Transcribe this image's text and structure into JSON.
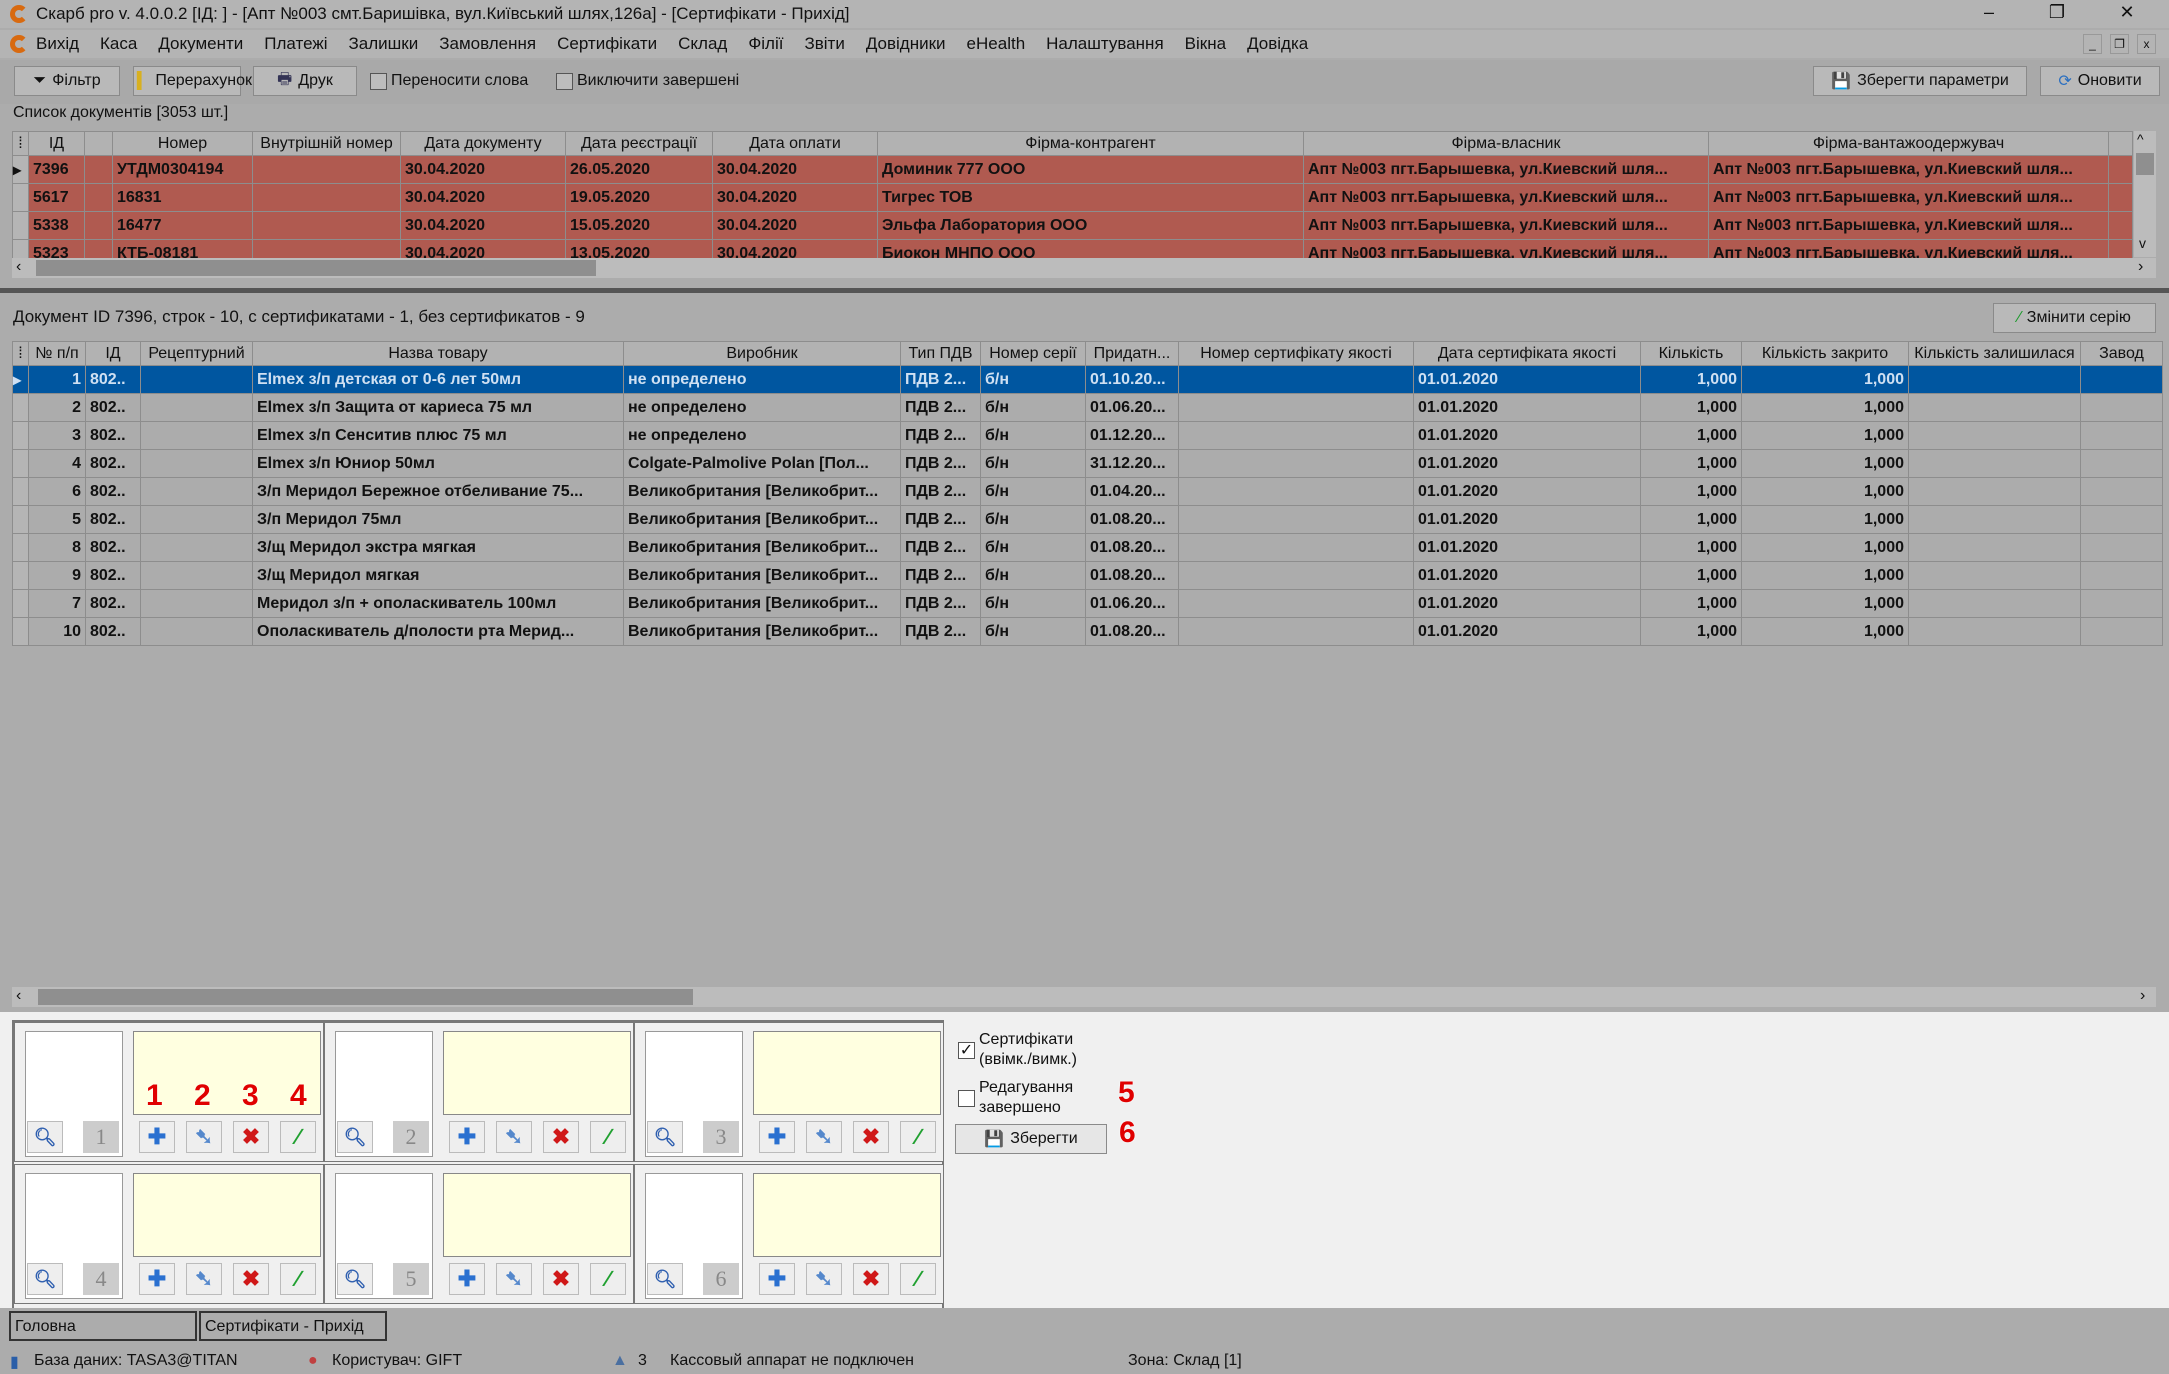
{
  "window": {
    "title": "Скарб pro v. 4.0.0.2 [ІД:      ] - [Апт №003 смт.Баришівка, вул.Київський шлях,126а] - [Сертифікати - Прихід]",
    "minimize": "–",
    "restore": "❐",
    "close": "✕"
  },
  "menu": [
    "Вихід",
    "Каса",
    "Документи",
    "Платежі",
    "Залишки",
    "Замовлення",
    "Сертифікати",
    "Склад",
    "Філії",
    "Звіти",
    "Довідники",
    "eHealth",
    "Налаштування",
    "Вікна",
    "Довідка"
  ],
  "toolbar": {
    "filter": "Фільтр",
    "recalc": "Перерахунок",
    "print": "Друк",
    "wrap_words": "Переносити слова",
    "exclude_finished": "Виключити завершені",
    "save_params": "Зберегти параметри",
    "refresh": "Оновити"
  },
  "docs": {
    "caption": "Список документів [3053 шт.]",
    "columns": [
      "ІД",
      "",
      "Номер",
      "Внутрішній номер",
      "Дата документу",
      "Дата реєстрації",
      "Дата оплати",
      "Фірма-контрагент",
      "Фірма-власник",
      "Фірма-вантажоодержувач"
    ],
    "rows": [
      [
        "7396",
        "",
        "УТДМ0304194",
        "",
        "30.04.2020",
        "26.05.2020",
        "30.04.2020",
        "Доминик 777 ООО",
        "Апт №003 пгт.Барышевка, ул.Киевский шля...",
        "Апт №003 пгт.Барышевка, ул.Киевский шля..."
      ],
      [
        "5617",
        "",
        "16831",
        "",
        "30.04.2020",
        "19.05.2020",
        "30.04.2020",
        "Тигрес ТОВ",
        "Апт №003 пгт.Барышевка, ул.Киевский шля...",
        "Апт №003 пгт.Барышевка, ул.Киевский шля..."
      ],
      [
        "5338",
        "",
        "16477",
        "",
        "30.04.2020",
        "15.05.2020",
        "30.04.2020",
        "Эльфа Лаборатория ООО",
        "Апт №003 пгт.Барышевка, ул.Киевский шля...",
        "Апт №003 пгт.Барышевка, ул.Киевский шля..."
      ],
      [
        "5323",
        "",
        "КТБ-08181",
        "",
        "30.04.2020",
        "13.05.2020",
        "30.04.2020",
        "Биокон МНПО ООО",
        "Апт №003 пгт.Барышевка, ул.Киевский шля...",
        "Апт №003 пгт.Барышевка, ул.Киевский шля..."
      ]
    ]
  },
  "items": {
    "caption": "Документ ID 7396, строк - 10, с сертификатами - 1, без сертификатов - 9",
    "change_series": "Змінити серію",
    "columns": [
      "№ п/п",
      "ІД",
      "Рецептурний",
      "Назва товару",
      "Виробник",
      "Тип ПДВ",
      "Номер серії",
      "Придатн...",
      "Номер сертифікату якості",
      "Дата сертифіката якості",
      "Кількість",
      "Кількість закрито",
      "Кількість залишилася",
      "Завод"
    ],
    "rows": [
      [
        "1",
        "802..",
        "",
        "Elmex з/п детская от 0-6 лет 50мл",
        "не определено",
        "ПДВ 2...",
        "б/н",
        "01.10.20...",
        "",
        "01.01.2020",
        "1,000",
        "1,000",
        "",
        ""
      ],
      [
        "2",
        "802..",
        "",
        "Elmex з/п Защита от кариеса 75 мл",
        "не определено",
        "ПДВ 2...",
        "б/н",
        "01.06.20...",
        "",
        "01.01.2020",
        "1,000",
        "1,000",
        "",
        ""
      ],
      [
        "3",
        "802..",
        "",
        "Elmex з/п Сенситив плюс 75 мл",
        "не определено",
        "ПДВ 2...",
        "б/н",
        "01.12.20...",
        "",
        "01.01.2020",
        "1,000",
        "1,000",
        "",
        ""
      ],
      [
        "4",
        "802..",
        "",
        "Elmex з/п Юниор 50мл",
        "Colgate-Palmolive Polan [Пол...",
        "ПДВ 2...",
        "б/н",
        "31.12.20...",
        "",
        "01.01.2020",
        "1,000",
        "1,000",
        "",
        ""
      ],
      [
        "6",
        "802..",
        "",
        "З/п Меридол Бережное отбеливание 75...",
        "Великобритания [Великобрит...",
        "ПДВ 2...",
        "б/н",
        "01.04.20...",
        "",
        "01.01.2020",
        "1,000",
        "1,000",
        "",
        ""
      ],
      [
        "5",
        "802..",
        "",
        "З/п Меридол 75мл",
        "Великобритания [Великобрит...",
        "ПДВ 2...",
        "б/н",
        "01.08.20...",
        "",
        "01.01.2020",
        "1,000",
        "1,000",
        "",
        ""
      ],
      [
        "8",
        "802..",
        "",
        "З/щ Меридол экстра мягкая",
        "Великобритания [Великобрит...",
        "ПДВ 2...",
        "б/н",
        "01.08.20...",
        "",
        "01.01.2020",
        "1,000",
        "1,000",
        "",
        ""
      ],
      [
        "9",
        "802..",
        "",
        "З/щ Меридол мягкая",
        "Великобритания [Великобрит...",
        "ПДВ 2...",
        "б/н",
        "01.08.20...",
        "",
        "01.01.2020",
        "1,000",
        "1,000",
        "",
        ""
      ],
      [
        "7",
        "802..",
        "",
        "Меридол з/п + ополаскиватель 100мл",
        "Великобритания [Великобрит...",
        "ПДВ 2...",
        "б/н",
        "01.06.20...",
        "",
        "01.01.2020",
        "1,000",
        "1,000",
        "",
        ""
      ],
      [
        "10",
        "802..",
        "",
        "Ополаскиватель д/полости рта Мерид...",
        "Великобритания [Великобрит...",
        "ПДВ 2...",
        "б/н",
        "01.08.20...",
        "",
        "01.01.2020",
        "1,000",
        "1,000",
        "",
        ""
      ]
    ]
  },
  "certs": {
    "slots": [
      "1",
      "2",
      "3",
      "4",
      "5",
      "6"
    ],
    "markers": [
      "1",
      "2",
      "3",
      "4",
      "5",
      "6"
    ],
    "certs_toggle": "Сертифікати (ввімк./вимк.)",
    "certs_toggle_checked": true,
    "edit_done": "Редагування завершено",
    "edit_done_checked": false,
    "save": "Зберегти"
  },
  "tabs": [
    "Головна",
    "Сертифікати - Прихід"
  ],
  "status": {
    "db": "База даних: TASA3@TITAN",
    "user": "Користувач: GIFT",
    "count": "3",
    "cash": "Кассовый аппарат не подключен",
    "zone": "Зона: Склад [1]"
  },
  "colors": {
    "doc_row": "#b05a50",
    "selected_row": "#0056a0",
    "cert_preview": "#ffffe0",
    "marker": "#e00000"
  }
}
